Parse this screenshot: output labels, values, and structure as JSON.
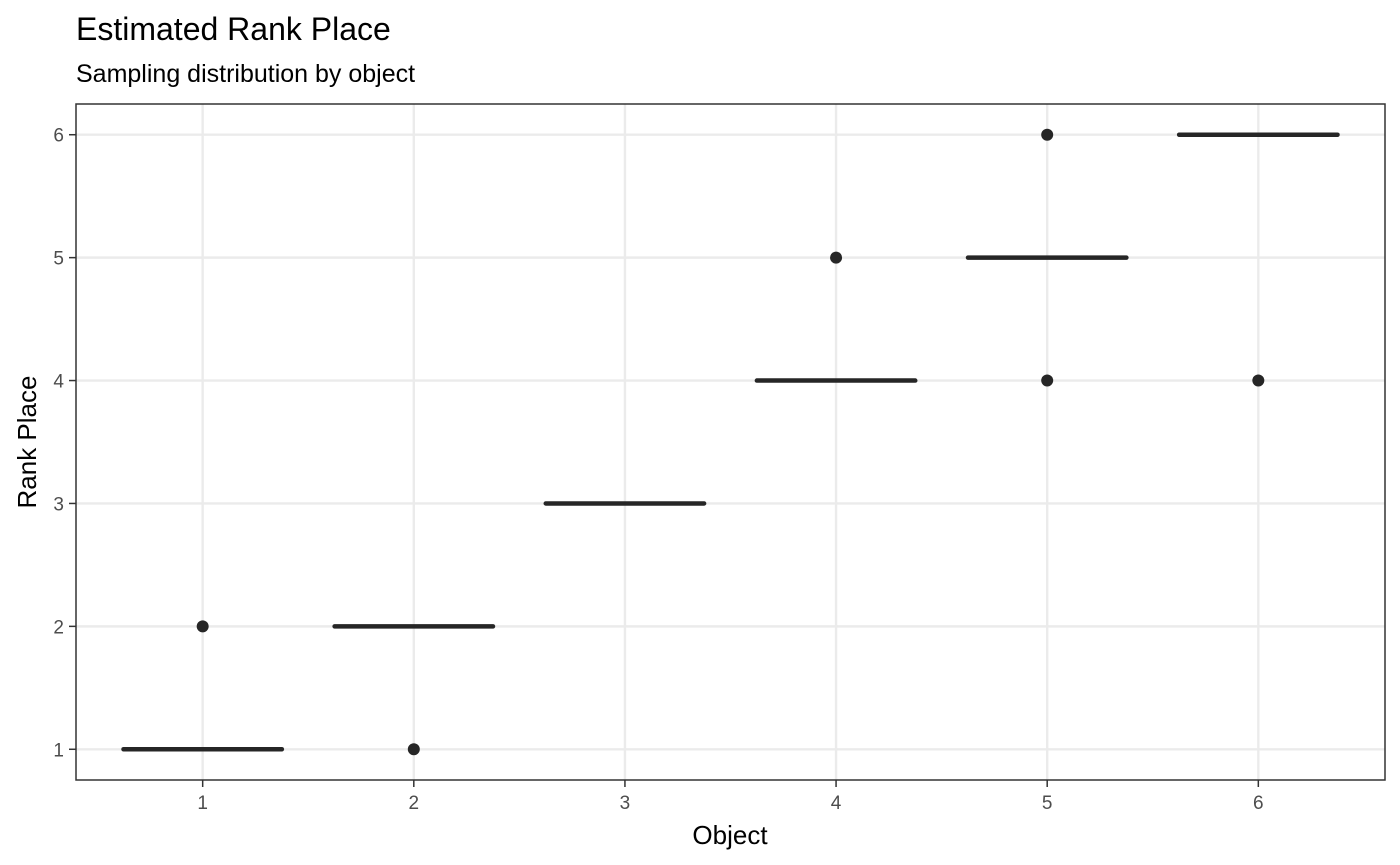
{
  "chart_data": {
    "type": "boxplot",
    "title": "Estimated Rank Place",
    "subtitle": "Sampling distribution by object",
    "xlabel": "Object",
    "ylabel": "Rank Place",
    "categories": [
      "1",
      "2",
      "3",
      "4",
      "5",
      "6"
    ],
    "y_ticks": [
      1,
      2,
      3,
      4,
      5,
      6
    ],
    "xlim": [
      0.4,
      6.6
    ],
    "ylim": [
      0.75,
      6.25
    ],
    "grid": true,
    "legend": "none",
    "boxes": [
      {
        "category": "1",
        "median": 1,
        "q1": 1,
        "q3": 1,
        "outliers": [
          2
        ]
      },
      {
        "category": "2",
        "median": 2,
        "q1": 2,
        "q3": 2,
        "outliers": [
          1
        ]
      },
      {
        "category": "3",
        "median": 3,
        "q1": 3,
        "q3": 3,
        "outliers": []
      },
      {
        "category": "4",
        "median": 4,
        "q1": 4,
        "q3": 4,
        "outliers": [
          5
        ]
      },
      {
        "category": "5",
        "median": 5,
        "q1": 5,
        "q3": 5,
        "outliers": [
          6,
          4
        ]
      },
      {
        "category": "6",
        "median": 6,
        "q1": 6,
        "q3": 6,
        "outliers": [
          4
        ]
      }
    ],
    "colors": {
      "marks": "#262626",
      "grid": "#ebebeb",
      "panel_border": "#333333",
      "tick_text": "#4d4d4d",
      "tick_mark": "#333333"
    }
  }
}
